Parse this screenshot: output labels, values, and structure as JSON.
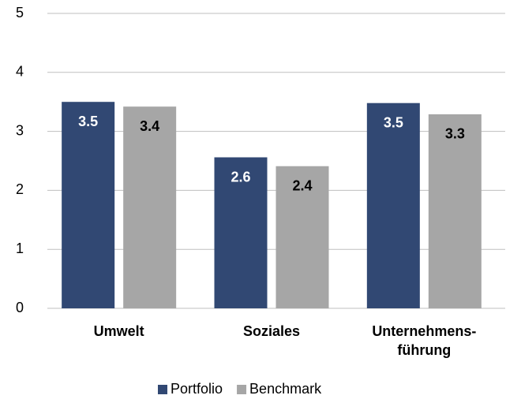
{
  "chart_data": {
    "type": "bar",
    "categories": [
      "Umwelt",
      "Soziales",
      "Unternehmens-führung"
    ],
    "series": [
      {
        "name": "Portfolio",
        "color": "#314873",
        "values": [
          3.5,
          2.56,
          3.48
        ],
        "value_labels": [
          "3.5",
          "2.6",
          "3.5"
        ]
      },
      {
        "name": "Benchmark",
        "color": "#a6a6a6",
        "values": [
          3.42,
          2.41,
          3.29
        ],
        "value_labels": [
          "3.4",
          "2.4",
          "3.3"
        ]
      }
    ],
    "ylim": [
      0,
      5
    ],
    "yticks": [
      0,
      1,
      2,
      3,
      4,
      5
    ],
    "grid": true,
    "legend": "bottom"
  }
}
